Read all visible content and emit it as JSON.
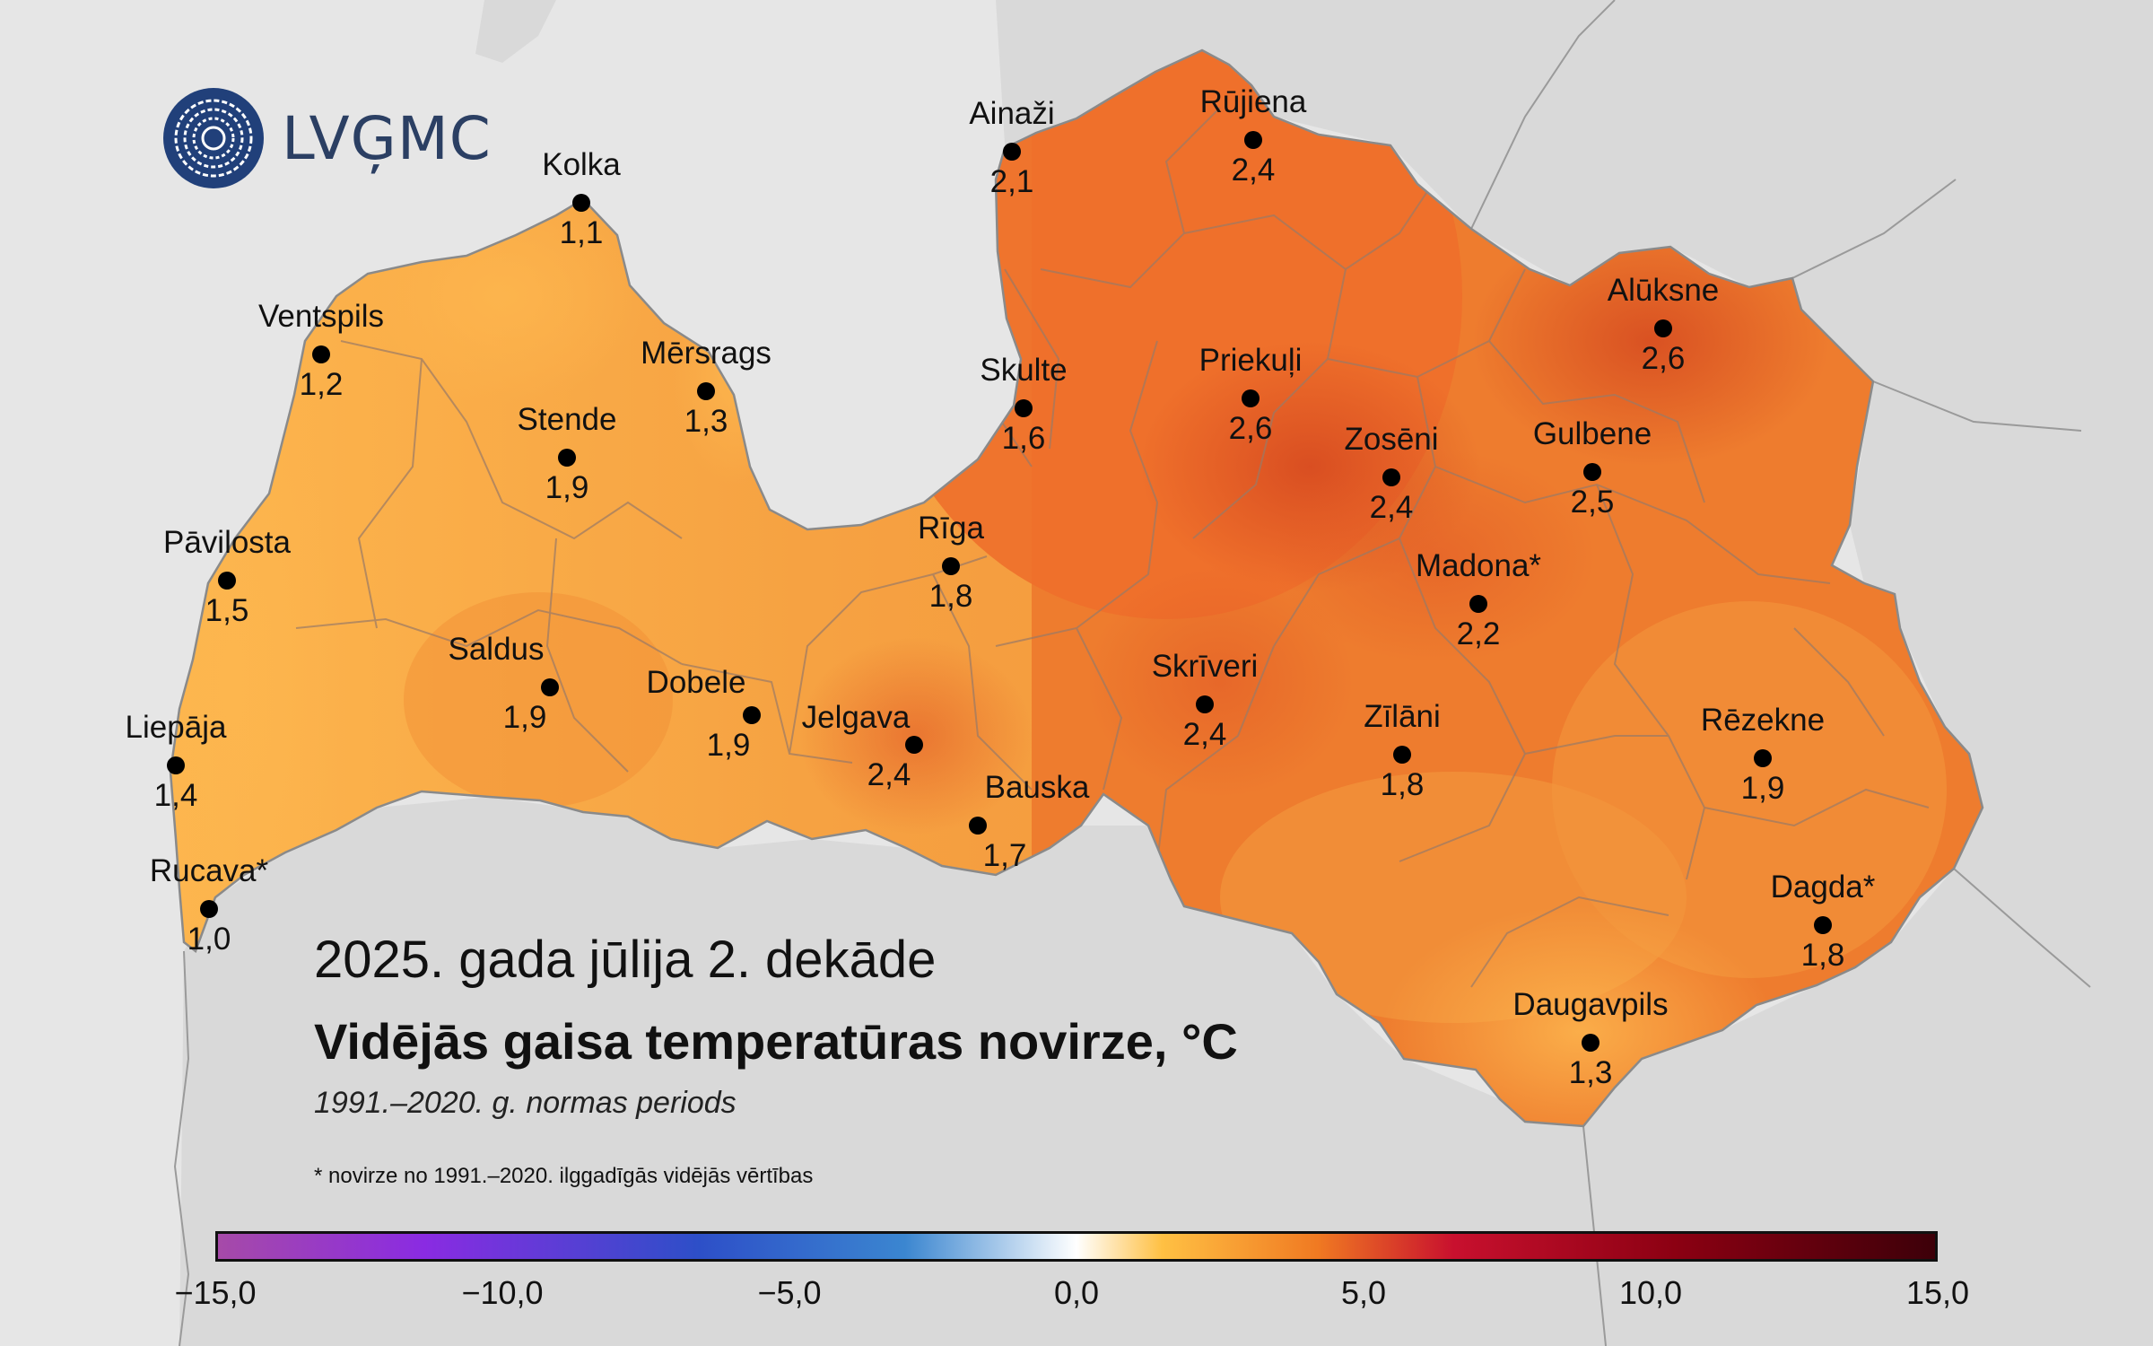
{
  "logo": {
    "text": "LVĢMC"
  },
  "title": {
    "period": "2025. gada jūlija 2. dekāde",
    "main": "Vidējās gaisa temperatūras novirze, °C",
    "subtitle": "1991.–2020. g. normas periods",
    "footnote": "* novirze no 1991.–2020. ilggadīgās vidējās vērtības"
  },
  "stations": [
    {
      "name": "Kolka",
      "value": "1,1"
    },
    {
      "name": "Ventspils",
      "value": "1,2"
    },
    {
      "name": "Mērsrags",
      "value": "1,3"
    },
    {
      "name": "Stende",
      "value": "1,9"
    },
    {
      "name": "Pāvilosta",
      "value": "1,5"
    },
    {
      "name": "Saldus",
      "value": "1,9"
    },
    {
      "name": "Dobele",
      "value": "1,9"
    },
    {
      "name": "Liepāja",
      "value": "1,4"
    },
    {
      "name": "Rucava*",
      "value": "1,0"
    },
    {
      "name": "Jelgava",
      "value": "2,4"
    },
    {
      "name": "Bauska",
      "value": "1,7"
    },
    {
      "name": "Rīga",
      "value": "1,8"
    },
    {
      "name": "Skulte",
      "value": "1,6"
    },
    {
      "name": "Ainaži",
      "value": "2,1"
    },
    {
      "name": "Rūjiena",
      "value": "2,4"
    },
    {
      "name": "Priekuļi",
      "value": "2,6"
    },
    {
      "name": "Alūksne",
      "value": "2,6"
    },
    {
      "name": "Zosēni",
      "value": "2,4"
    },
    {
      "name": "Gulbene",
      "value": "2,5"
    },
    {
      "name": "Madona*",
      "value": "2,2"
    },
    {
      "name": "Skrīveri",
      "value": "2,4"
    },
    {
      "name": "Zīlāni",
      "value": "1,8"
    },
    {
      "name": "Rēzekne",
      "value": "1,9"
    },
    {
      "name": "Dagda*",
      "value": "1,8"
    },
    {
      "name": "Daugavpils",
      "value": "1,3"
    }
  ],
  "colorbar": {
    "ticks": [
      "−15,0",
      "−10,0",
      "−5,0",
      "0,0",
      "5,0",
      "10,0",
      "15,0"
    ],
    "min": -15,
    "max": 15,
    "colors": [
      "#a64aa8",
      "#8a2be2",
      "#2d4fc8",
      "#3b86d0",
      "#ffffff",
      "#ffc043",
      "#f07a22",
      "#c8102e",
      "#8b0012",
      "#3d0009"
    ]
  },
  "colors": {
    "sea": "#e6e6e6",
    "land_outside": "#d9d9d9",
    "low": "#fdb64e",
    "mid": "#f3913a",
    "high": "#de4f24",
    "border": "#8a8a8a"
  }
}
